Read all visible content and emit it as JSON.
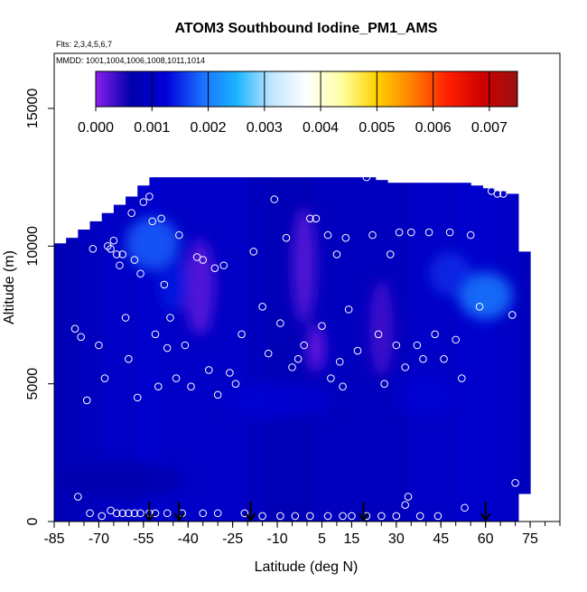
{
  "chart_data": {
    "type": "heatmap",
    "title": "ATOM3 Southbound Iodine_PM1_AMS",
    "flights_label": "Flts: 2,3,4,5,6,7",
    "mmdd_label": "MMDD: 1001,1004,1006,1008,1011,1014",
    "xlabel": "Latitude (deg N)",
    "ylabel": "Altitude (m)",
    "xlim": [
      -85,
      85
    ],
    "ylim": [
      0,
      17000
    ],
    "x_ticks": [
      -85,
      -70,
      -55,
      -40,
      -25,
      -10,
      5,
      15,
      30,
      45,
      60,
      75
    ],
    "x_tick_labels": [
      "-85",
      "-70",
      "-55",
      "-40",
      "-25",
      "-10",
      "5",
      "15",
      "30",
      "45",
      "60",
      "75"
    ],
    "x_minor_step": 5,
    "y_ticks": [
      0,
      5000,
      10000,
      15000
    ],
    "y_tick_labels": [
      "0",
      "5000",
      "10000",
      "15000"
    ],
    "colorbar": {
      "min": 0.0,
      "max": 0.0075,
      "tick_values": [
        0.0,
        0.001,
        0.002,
        0.003,
        0.004,
        0.005,
        0.006,
        0.007
      ],
      "tick_labels": [
        "0.000",
        "0.001",
        "0.002",
        "0.003",
        "0.004",
        "0.005",
        "0.006",
        "0.007"
      ],
      "palette": [
        "#8a1ef0",
        "#0000aa",
        "#0000d8",
        "#1a6cff",
        "#1ab4ff",
        "#bfe6ff",
        "#ffffff",
        "#ffffa0",
        "#ffd000",
        "#ff8000",
        "#ff2000",
        "#d00000",
        "#9a1010"
      ]
    },
    "curtain_columns": [
      {
        "lat": -83,
        "bottom": 0,
        "top": 10100,
        "value": 0.0008
      },
      {
        "lat": -79,
        "bottom": 0,
        "top": 10300,
        "value": 0.0008
      },
      {
        "lat": -75,
        "bottom": 0,
        "top": 10600,
        "value": 0.0009
      },
      {
        "lat": -71,
        "bottom": 0,
        "top": 10900,
        "value": 0.0009
      },
      {
        "lat": -67,
        "bottom": 0,
        "top": 11200,
        "value": 0.001
      },
      {
        "lat": -63,
        "bottom": 0,
        "top": 11500,
        "value": 0.001
      },
      {
        "lat": -59,
        "bottom": 0,
        "top": 11800,
        "value": 0.001
      },
      {
        "lat": -55,
        "bottom": 0,
        "top": 12200,
        "value": 0.0011
      },
      {
        "lat": -51,
        "bottom": 0,
        "top": 12500,
        "value": 0.0011
      },
      {
        "lat": -47,
        "bottom": 0,
        "top": 12500,
        "value": 0.001
      },
      {
        "lat": -43,
        "bottom": 0,
        "top": 12500,
        "value": 0.001
      },
      {
        "lat": -39,
        "bottom": 0,
        "top": 12500,
        "value": 0.001
      },
      {
        "lat": -35,
        "bottom": 0,
        "top": 12500,
        "value": 0.001
      },
      {
        "lat": -31,
        "bottom": 0,
        "top": 12500,
        "value": 0.001
      },
      {
        "lat": -27,
        "bottom": 0,
        "top": 12500,
        "value": 0.001
      },
      {
        "lat": -23,
        "bottom": 0,
        "top": 12500,
        "value": 0.001
      },
      {
        "lat": -19,
        "bottom": 0,
        "top": 12500,
        "value": 0.0009
      },
      {
        "lat": -15,
        "bottom": 0,
        "top": 12500,
        "value": 0.0009
      },
      {
        "lat": -11,
        "bottom": 0,
        "top": 12500,
        "value": 0.0008
      },
      {
        "lat": -7,
        "bottom": 0,
        "top": 12500,
        "value": 0.0008
      },
      {
        "lat": -3,
        "bottom": 0,
        "top": 12500,
        "value": 0.0008
      },
      {
        "lat": 1,
        "bottom": 0,
        "top": 12500,
        "value": 0.0008
      },
      {
        "lat": 5,
        "bottom": 0,
        "top": 12500,
        "value": 0.0009
      },
      {
        "lat": 9,
        "bottom": 0,
        "top": 12500,
        "value": 0.0009
      },
      {
        "lat": 13,
        "bottom": 0,
        "top": 12500,
        "value": 0.0009
      },
      {
        "lat": 17,
        "bottom": 0,
        "top": 12500,
        "value": 0.0009
      },
      {
        "lat": 21,
        "bottom": 0,
        "top": 12500,
        "value": 0.0009
      },
      {
        "lat": 25,
        "bottom": 0,
        "top": 12400,
        "value": 0.0009
      },
      {
        "lat": 29,
        "bottom": 0,
        "top": 12300,
        "value": 0.0009
      },
      {
        "lat": 33,
        "bottom": 0,
        "top": 12300,
        "value": 0.0009
      },
      {
        "lat": 37,
        "bottom": 0,
        "top": 12300,
        "value": 0.001
      },
      {
        "lat": 41,
        "bottom": 0,
        "top": 12300,
        "value": 0.001
      },
      {
        "lat": 45,
        "bottom": 0,
        "top": 12300,
        "value": 0.001
      },
      {
        "lat": 49,
        "bottom": 0,
        "top": 12300,
        "value": 0.001
      },
      {
        "lat": 53,
        "bottom": 0,
        "top": 12300,
        "value": 0.0011
      },
      {
        "lat": 57,
        "bottom": 0,
        "top": 12200,
        "value": 0.0011
      },
      {
        "lat": 61,
        "bottom": 0,
        "top": 12100,
        "value": 0.0011
      },
      {
        "lat": 65,
        "bottom": 0,
        "top": 12000,
        "value": 0.001
      },
      {
        "lat": 69,
        "bottom": 0,
        "top": 11900,
        "value": 0.001
      },
      {
        "lat": 73,
        "bottom": 1000,
        "top": 9800,
        "value": 0.0009
      }
    ],
    "features": [
      {
        "lat": -36,
        "alt": 8500,
        "dlat": 5,
        "dalt": 3500,
        "value": 0.0002
      },
      {
        "lat": -1,
        "alt": 9300,
        "dlat": 4,
        "dalt": 4200,
        "value": 0.0002
      },
      {
        "lat": 3,
        "alt": 6300,
        "dlat": 3,
        "dalt": 1700,
        "value": 0.0001
      },
      {
        "lat": 25,
        "alt": 7000,
        "dlat": 4,
        "dalt": 3500,
        "value": 0.0003
      },
      {
        "lat": -52,
        "alt": 10100,
        "dlat": 9,
        "dalt": 1900,
        "value": 0.0018
      },
      {
        "lat": -45,
        "alt": 8600,
        "dlat": 5,
        "dalt": 2000,
        "value": 0.0014
      },
      {
        "lat": 60,
        "alt": 8200,
        "dlat": 9,
        "dalt": 1700,
        "value": 0.002
      },
      {
        "lat": 48,
        "alt": 9000,
        "dlat": 7,
        "dalt": 1600,
        "value": 0.0015
      },
      {
        "lat": -10,
        "alt": 4400,
        "dlat": 18,
        "dalt": 1300,
        "value": 0.0012
      },
      {
        "lat": -62,
        "alt": 1500,
        "dlat": 20,
        "dalt": 1400,
        "value": 0.0006
      },
      {
        "lat": 40,
        "alt": 4600,
        "dlat": 10,
        "dalt": 1500,
        "value": 0.0012
      }
    ],
    "flight_points": [
      {
        "lat": -78,
        "alt": 7000
      },
      {
        "lat": -76,
        "alt": 6700
      },
      {
        "lat": -74,
        "alt": 4400
      },
      {
        "lat": -72,
        "alt": 9900
      },
      {
        "lat": -70,
        "alt": 6400
      },
      {
        "lat": -68,
        "alt": 5200
      },
      {
        "lat": -67,
        "alt": 10000
      },
      {
        "lat": -66,
        "alt": 9900
      },
      {
        "lat": -65,
        "alt": 10200
      },
      {
        "lat": -64,
        "alt": 9700
      },
      {
        "lat": -63,
        "alt": 9300
      },
      {
        "lat": -62,
        "alt": 9700
      },
      {
        "lat": -61,
        "alt": 7400
      },
      {
        "lat": -60,
        "alt": 5900
      },
      {
        "lat": -59,
        "alt": 11200
      },
      {
        "lat": -58,
        "alt": 9500
      },
      {
        "lat": -57,
        "alt": 4500
      },
      {
        "lat": -56,
        "alt": 9000
      },
      {
        "lat": -55,
        "alt": 11600
      },
      {
        "lat": -53,
        "alt": 11800
      },
      {
        "lat": -52,
        "alt": 10900
      },
      {
        "lat": -51,
        "alt": 6800
      },
      {
        "lat": -50,
        "alt": 4900
      },
      {
        "lat": -49,
        "alt": 11000
      },
      {
        "lat": -48,
        "alt": 8600
      },
      {
        "lat": -47,
        "alt": 6300
      },
      {
        "lat": -46,
        "alt": 7400
      },
      {
        "lat": -44,
        "alt": 5200
      },
      {
        "lat": -43,
        "alt": 10400
      },
      {
        "lat": -41,
        "alt": 6400
      },
      {
        "lat": -39,
        "alt": 4900
      },
      {
        "lat": -37,
        "alt": 9600
      },
      {
        "lat": -35,
        "alt": 9500
      },
      {
        "lat": -33,
        "alt": 5500
      },
      {
        "lat": -31,
        "alt": 9200
      },
      {
        "lat": -30,
        "alt": 4600
      },
      {
        "lat": -28,
        "alt": 9300
      },
      {
        "lat": -26,
        "alt": 5400
      },
      {
        "lat": -24,
        "alt": 5000
      },
      {
        "lat": -22,
        "alt": 6800
      },
      {
        "lat": -18,
        "alt": 9800
      },
      {
        "lat": -15,
        "alt": 7800
      },
      {
        "lat": -13,
        "alt": 6100
      },
      {
        "lat": -11,
        "alt": 11700
      },
      {
        "lat": -9,
        "alt": 7200
      },
      {
        "lat": -7,
        "alt": 10300
      },
      {
        "lat": -5,
        "alt": 5600
      },
      {
        "lat": -3,
        "alt": 5900
      },
      {
        "lat": -1,
        "alt": 6400
      },
      {
        "lat": 1,
        "alt": 11000
      },
      {
        "lat": 3,
        "alt": 11000
      },
      {
        "lat": 5,
        "alt": 7100
      },
      {
        "lat": 7,
        "alt": 10400
      },
      {
        "lat": 8,
        "alt": 5200
      },
      {
        "lat": 10,
        "alt": 9700
      },
      {
        "lat": 11,
        "alt": 5800
      },
      {
        "lat": 12,
        "alt": 4900
      },
      {
        "lat": 13,
        "alt": 10300
      },
      {
        "lat": 14,
        "alt": 7700
      },
      {
        "lat": 17,
        "alt": 6200
      },
      {
        "lat": 20,
        "alt": 12500
      },
      {
        "lat": 22,
        "alt": 10400
      },
      {
        "lat": 24,
        "alt": 6800
      },
      {
        "lat": 26,
        "alt": 5000
      },
      {
        "lat": 28,
        "alt": 9700
      },
      {
        "lat": 30,
        "alt": 6400
      },
      {
        "lat": 31,
        "alt": 10500
      },
      {
        "lat": 33,
        "alt": 5600
      },
      {
        "lat": 35,
        "alt": 10500
      },
      {
        "lat": 37,
        "alt": 6400
      },
      {
        "lat": 39,
        "alt": 5900
      },
      {
        "lat": 41,
        "alt": 10500
      },
      {
        "lat": 43,
        "alt": 6800
      },
      {
        "lat": 46,
        "alt": 5900
      },
      {
        "lat": 48,
        "alt": 10500
      },
      {
        "lat": 50,
        "alt": 6600
      },
      {
        "lat": 52,
        "alt": 5200
      },
      {
        "lat": 55,
        "alt": 10400
      },
      {
        "lat": 58,
        "alt": 7800
      },
      {
        "lat": 62,
        "alt": 12000
      },
      {
        "lat": 64,
        "alt": 11900
      },
      {
        "lat": 66,
        "alt": 11900
      },
      {
        "lat": 69,
        "alt": 7500
      },
      {
        "lat": 70,
        "alt": 1400
      },
      {
        "lat": -77,
        "alt": 900
      },
      {
        "lat": -73,
        "alt": 300
      },
      {
        "lat": -69,
        "alt": 200
      },
      {
        "lat": -66,
        "alt": 400
      },
      {
        "lat": -64,
        "alt": 300
      },
      {
        "lat": -62,
        "alt": 300
      },
      {
        "lat": -60,
        "alt": 300
      },
      {
        "lat": -58,
        "alt": 300
      },
      {
        "lat": -56,
        "alt": 300
      },
      {
        "lat": -53,
        "alt": 300
      },
      {
        "lat": -51,
        "alt": 300
      },
      {
        "lat": -47,
        "alt": 300
      },
      {
        "lat": -42,
        "alt": 300
      },
      {
        "lat": -35,
        "alt": 300
      },
      {
        "lat": -30,
        "alt": 300
      },
      {
        "lat": -21,
        "alt": 300
      },
      {
        "lat": -15,
        "alt": 200
      },
      {
        "lat": -9,
        "alt": 200
      },
      {
        "lat": -4,
        "alt": 200
      },
      {
        "lat": 1,
        "alt": 200
      },
      {
        "lat": 7,
        "alt": 200
      },
      {
        "lat": 12,
        "alt": 200
      },
      {
        "lat": 15,
        "alt": 200
      },
      {
        "lat": 20,
        "alt": 200
      },
      {
        "lat": 25,
        "alt": 200
      },
      {
        "lat": 30,
        "alt": 200
      },
      {
        "lat": 33,
        "alt": 600
      },
      {
        "lat": 34,
        "alt": 900
      },
      {
        "lat": 38,
        "alt": 200
      },
      {
        "lat": 44,
        "alt": 200
      },
      {
        "lat": 53,
        "alt": 500
      }
    ],
    "arrows_lat": [
      -53,
      -43,
      -19,
      19,
      60
    ]
  }
}
